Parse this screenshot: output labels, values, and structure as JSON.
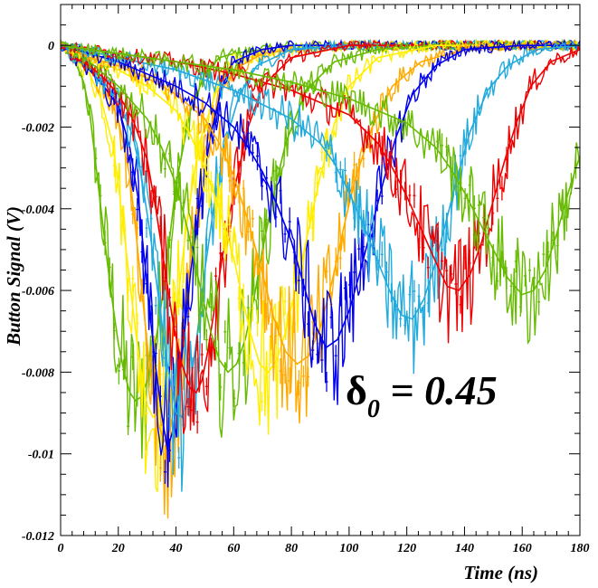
{
  "chart_data": {
    "type": "line",
    "xlabel": "Time (ns)",
    "ylabel": "Button Signal (V)",
    "xlim": [
      0,
      180
    ],
    "ylim": [
      -0.012,
      0.001
    ],
    "xticks": [
      {
        "value": 0,
        "label": "0"
      },
      {
        "value": 20,
        "label": "20"
      },
      {
        "value": 40,
        "label": "40"
      },
      {
        "value": 60,
        "label": "60"
      },
      {
        "value": 80,
        "label": "80"
      },
      {
        "value": 100,
        "label": "100"
      },
      {
        "value": 120,
        "label": "120"
      },
      {
        "value": 140,
        "label": "140"
      },
      {
        "value": 160,
        "label": "160"
      },
      {
        "value": 180,
        "label": "180"
      }
    ],
    "yticks": [
      {
        "value": 0,
        "label": "0"
      },
      {
        "value": -0.002,
        "label": "-0.002"
      },
      {
        "value": -0.004,
        "label": "-0.004"
      },
      {
        "value": -0.006,
        "label": "-0.006"
      },
      {
        "value": -0.008,
        "label": "-0.008"
      },
      {
        "value": -0.01,
        "label": "-0.01"
      },
      {
        "value": -0.012,
        "label": "-0.012"
      }
    ],
    "grid": false,
    "annotation": {
      "symbol": "δ",
      "subscript": "0",
      "text": " = 0.45"
    },
    "series": [
      {
        "color": "#66bb00",
        "x": [
          0,
          5,
          8,
          10,
          12,
          14,
          16,
          18,
          20,
          22,
          24,
          26,
          28,
          30,
          32,
          34,
          36,
          38,
          40,
          45,
          50,
          55,
          60,
          70,
          80,
          90,
          100,
          120,
          140,
          160,
          180
        ],
        "y": [
          0.0001,
          -0.0004,
          -0.0009,
          -0.0016,
          -0.0028,
          -0.004,
          -0.0052,
          -0.0063,
          -0.0073,
          -0.008,
          -0.0085,
          -0.0087,
          -0.0086,
          -0.0082,
          -0.0076,
          -0.0068,
          -0.0058,
          -0.0046,
          -0.0034,
          -0.0016,
          -0.0007,
          -0.0003,
          -0.0002,
          -0.0001,
          0.0,
          0.0,
          0.0,
          0.0,
          0.0,
          0.0,
          0.0
        ]
      },
      {
        "color": "#ffee00",
        "x": [
          0,
          5,
          10,
          14,
          18,
          20,
          22,
          24,
          26,
          28,
          30,
          32,
          34,
          36,
          38,
          40,
          42,
          44,
          48,
          55,
          60,
          70,
          80,
          100,
          120,
          140,
          160,
          180
        ],
        "y": [
          0.0001,
          -0.0003,
          -0.0007,
          -0.0013,
          -0.0024,
          -0.0034,
          -0.0046,
          -0.0058,
          -0.007,
          -0.008,
          -0.0088,
          -0.0091,
          -0.009,
          -0.0085,
          -0.0077,
          -0.0066,
          -0.0054,
          -0.0042,
          -0.0024,
          -0.0009,
          -0.0004,
          -0.0002,
          -0.0001,
          0.0,
          0.0,
          0.0,
          0.0,
          0.0
        ]
      },
      {
        "color": "#ffaa00",
        "x": [
          0,
          5,
          10,
          15,
          20,
          24,
          26,
          28,
          30,
          32,
          34,
          36,
          38,
          40,
          42,
          44,
          46,
          50,
          55,
          60,
          70,
          80,
          100,
          120,
          140,
          160,
          180
        ],
        "y": [
          0.0,
          -0.0003,
          -0.0006,
          -0.001,
          -0.0018,
          -0.0032,
          -0.0045,
          -0.0059,
          -0.0073,
          -0.0085,
          -0.0093,
          -0.0097,
          -0.0094,
          -0.0086,
          -0.0074,
          -0.006,
          -0.0046,
          -0.0026,
          -0.0012,
          -0.0006,
          -0.0002,
          -0.0001,
          0.0,
          0.0,
          0.0,
          0.0,
          0.0
        ]
      },
      {
        "color": "#0000ee",
        "x": [
          0,
          5,
          10,
          15,
          20,
          24,
          27,
          29,
          31,
          33,
          35,
          37,
          39,
          41,
          43,
          45,
          48,
          52,
          56,
          60,
          70,
          80,
          100,
          120,
          140,
          160,
          180
        ],
        "y": [
          0.0,
          -0.0003,
          -0.0006,
          -0.001,
          -0.0015,
          -0.0025,
          -0.0038,
          -0.0052,
          -0.0066,
          -0.0079,
          -0.009,
          -0.0099,
          -0.0094,
          -0.0083,
          -0.007,
          -0.0056,
          -0.004,
          -0.0022,
          -0.001,
          -0.0004,
          -0.0001,
          0.0,
          0.0,
          0.0,
          0.0,
          0.0,
          0.0
        ]
      },
      {
        "color": "#22aadd",
        "x": [
          0,
          5,
          10,
          15,
          20,
          25,
          28,
          31,
          34,
          37,
          40,
          42,
          44,
          46,
          48,
          50,
          53,
          57,
          62,
          68,
          80,
          100,
          120,
          140,
          160,
          180
        ],
        "y": [
          0.0,
          -0.0003,
          -0.0005,
          -0.0009,
          -0.0014,
          -0.0022,
          -0.0032,
          -0.0046,
          -0.0062,
          -0.0078,
          -0.009,
          -0.0091,
          -0.0087,
          -0.0078,
          -0.0067,
          -0.0055,
          -0.004,
          -0.0024,
          -0.0012,
          -0.0005,
          -0.0001,
          0.0,
          0.0,
          0.0,
          0.0,
          0.0
        ]
      },
      {
        "color": "#ee0000",
        "x": [
          0,
          5,
          10,
          15,
          20,
          25,
          30,
          33,
          36,
          39,
          42,
          45,
          47,
          49,
          51,
          53,
          56,
          60,
          65,
          70,
          80,
          100,
          120,
          140,
          160,
          180
        ],
        "y": [
          0.0,
          -0.0003,
          -0.0005,
          -0.0008,
          -0.0012,
          -0.0018,
          -0.0028,
          -0.004,
          -0.0054,
          -0.0068,
          -0.0078,
          -0.0084,
          -0.0085,
          -0.0082,
          -0.0075,
          -0.0066,
          -0.0052,
          -0.0036,
          -0.002,
          -0.001,
          -0.0003,
          0.0,
          0.0,
          0.0,
          0.0,
          0.0
        ]
      },
      {
        "color": "#66bb00",
        "x": [
          0,
          5,
          10,
          15,
          20,
          25,
          30,
          35,
          40,
          44,
          48,
          52,
          55,
          58,
          61,
          64,
          67,
          70,
          74,
          78,
          85,
          95,
          110,
          130,
          150,
          180
        ],
        "y": [
          0.0,
          -0.0002,
          -0.0004,
          -0.0007,
          -0.001,
          -0.0014,
          -0.0018,
          -0.0025,
          -0.0034,
          -0.0045,
          -0.0058,
          -0.007,
          -0.0077,
          -0.008,
          -0.0078,
          -0.0072,
          -0.0062,
          -0.005,
          -0.0036,
          -0.0024,
          -0.0011,
          -0.0004,
          -0.0001,
          0.0,
          0.0,
          0.0
        ]
      },
      {
        "color": "#ffee00",
        "x": [
          0,
          10,
          20,
          30,
          40,
          45,
          50,
          55,
          60,
          63,
          66,
          69,
          72,
          75,
          78,
          82,
          86,
          90,
          95,
          100,
          110,
          130,
          150,
          180
        ],
        "y": [
          0.0,
          -0.0003,
          -0.0006,
          -0.001,
          -0.0016,
          -0.0022,
          -0.003,
          -0.004,
          -0.0052,
          -0.0062,
          -0.0071,
          -0.0078,
          -0.008,
          -0.0077,
          -0.007,
          -0.0058,
          -0.0045,
          -0.0032,
          -0.0019,
          -0.001,
          -0.0003,
          0.0,
          0.0,
          0.0
        ]
      },
      {
        "color": "#ffaa00",
        "x": [
          0,
          10,
          20,
          30,
          40,
          50,
          55,
          60,
          65,
          70,
          74,
          78,
          82,
          86,
          90,
          94,
          98,
          102,
          108,
          115,
          125,
          140,
          160,
          180
        ],
        "y": [
          0.0,
          -0.0003,
          -0.0005,
          -0.0008,
          -0.0012,
          -0.0018,
          -0.0024,
          -0.0032,
          -0.0043,
          -0.0056,
          -0.0067,
          -0.0075,
          -0.0078,
          -0.0076,
          -0.0069,
          -0.0058,
          -0.0045,
          -0.0033,
          -0.002,
          -0.001,
          -0.0004,
          -0.0001,
          0.0,
          0.0
        ]
      },
      {
        "color": "#0000ee",
        "x": [
          0,
          10,
          20,
          30,
          40,
          50,
          60,
          65,
          70,
          75,
          80,
          84,
          88,
          92,
          96,
          100,
          104,
          108,
          112,
          116,
          122,
          130,
          140,
          160,
          180
        ],
        "y": [
          0.0,
          -0.0002,
          -0.0004,
          -0.0007,
          -0.001,
          -0.0014,
          -0.002,
          -0.0025,
          -0.0031,
          -0.0039,
          -0.0048,
          -0.0058,
          -0.0068,
          -0.0074,
          -0.0072,
          -0.0065,
          -0.0055,
          -0.0044,
          -0.0033,
          -0.0023,
          -0.0012,
          -0.0005,
          -0.0001,
          0.0,
          0.0
        ]
      },
      {
        "color": "#22aadd",
        "x": [
          0,
          20,
          40,
          60,
          80,
          90,
          95,
          100,
          105,
          110,
          114,
          118,
          122,
          126,
          130,
          134,
          138,
          142,
          148,
          155,
          165,
          180
        ],
        "y": [
          0.0,
          -0.0003,
          -0.0006,
          -0.0011,
          -0.0018,
          -0.0024,
          -0.0029,
          -0.0036,
          -0.0044,
          -0.0053,
          -0.006,
          -0.0066,
          -0.0067,
          -0.0062,
          -0.0053,
          -0.0042,
          -0.0031,
          -0.0021,
          -0.0011,
          -0.0005,
          -0.0001,
          0.0
        ]
      },
      {
        "color": "#ee0000",
        "x": [
          0,
          20,
          40,
          60,
          80,
          100,
          110,
          115,
          120,
          125,
          130,
          134,
          138,
          142,
          146,
          150,
          154,
          158,
          163,
          170,
          180
        ],
        "y": [
          0.0,
          -0.0002,
          -0.0004,
          -0.0007,
          -0.0011,
          -0.0017,
          -0.0024,
          -0.003,
          -0.0037,
          -0.0045,
          -0.0053,
          -0.0059,
          -0.006,
          -0.0056,
          -0.0048,
          -0.0038,
          -0.0028,
          -0.0019,
          -0.001,
          -0.0004,
          -0.0001
        ]
      },
      {
        "color": "#66bb00",
        "x": [
          0,
          20,
          40,
          60,
          80,
          100,
          120,
          130,
          135,
          140,
          145,
          150,
          155,
          160,
          164,
          168,
          172,
          176,
          180
        ],
        "y": [
          0.0,
          -0.0002,
          -0.0004,
          -0.0006,
          -0.0009,
          -0.0013,
          -0.0019,
          -0.0025,
          -0.003,
          -0.0036,
          -0.0043,
          -0.005,
          -0.0057,
          -0.0061,
          -0.006,
          -0.0055,
          -0.0046,
          -0.0036,
          -0.0027
        ]
      }
    ]
  }
}
